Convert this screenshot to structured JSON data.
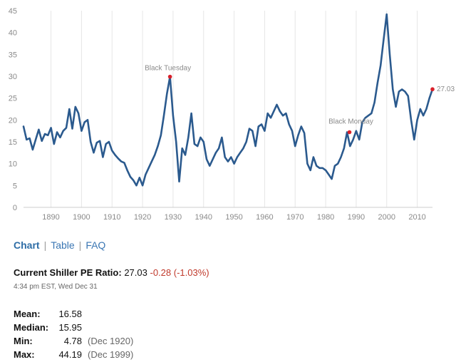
{
  "chart_data": {
    "type": "line",
    "title": "",
    "xlabel": "",
    "ylabel": "",
    "xlim": [
      1881,
      2015
    ],
    "ylim": [
      0,
      45
    ],
    "x_ticks": [
      1890,
      1900,
      1910,
      1920,
      1930,
      1940,
      1950,
      1960,
      1970,
      1980,
      1990,
      2000,
      2010
    ],
    "y_ticks": [
      0,
      5,
      10,
      15,
      20,
      25,
      30,
      35,
      40,
      45
    ],
    "grid": "vertical",
    "line_color": "#2b5a8e",
    "marker_color": "#d9202a",
    "series": [
      {
        "x": [
          1881,
          1882,
          1883,
          1884,
          1885,
          1886,
          1887,
          1888,
          1889,
          1890,
          1891,
          1892,
          1893,
          1894,
          1895,
          1896,
          1897,
          1898,
          1899,
          1900,
          1901,
          1902,
          1903,
          1904,
          1905,
          1906,
          1907,
          1908,
          1909,
          1910,
          1911,
          1912,
          1913,
          1914,
          1915,
          1916,
          1917,
          1918,
          1919,
          1920,
          1921,
          1922,
          1923,
          1924,
          1925,
          1926,
          1927,
          1928,
          1929,
          1930,
          1931,
          1932,
          1933,
          1934,
          1935,
          1936,
          1937,
          1938,
          1939,
          1940,
          1941,
          1942,
          1943,
          1944,
          1945,
          1946,
          1947,
          1948,
          1949,
          1950,
          1951,
          1952,
          1953,
          1954,
          1955,
          1956,
          1957,
          1958,
          1959,
          1960,
          1961,
          1962,
          1963,
          1964,
          1965,
          1966,
          1967,
          1968,
          1969,
          1970,
          1971,
          1972,
          1973,
          1974,
          1975,
          1976,
          1977,
          1978,
          1979,
          1980,
          1981,
          1982,
          1983,
          1984,
          1985,
          1986,
          1987,
          1988,
          1989,
          1990,
          1991,
          1992,
          1993,
          1994,
          1995,
          1996,
          1997,
          1998,
          1999,
          2000,
          2001,
          2002,
          2003,
          2004,
          2005,
          2006,
          2007,
          2008,
          2009,
          2010,
          2011,
          2012,
          2013,
          2014,
          2015
        ],
        "y": [
          18.5,
          15.5,
          15.8,
          13.2,
          15.5,
          17.8,
          15.2,
          16.8,
          16.5,
          18.2,
          14.5,
          17.2,
          16.0,
          17.5,
          18.2,
          22.5,
          18.0,
          23.0,
          21.5,
          17.5,
          19.5,
          20.0,
          15.0,
          12.5,
          14.8,
          15.2,
          11.5,
          14.5,
          15.0,
          13.0,
          12.0,
          11.2,
          10.5,
          10.2,
          8.5,
          7.0,
          6.2,
          5.0,
          6.8,
          5.0,
          7.5,
          9.0,
          10.5,
          12.0,
          14.0,
          16.5,
          21.0,
          26.0,
          29.9,
          21.0,
          15.0,
          5.9,
          13.5,
          12.0,
          16.0,
          21.5,
          14.5,
          14.0,
          16.0,
          15.0,
          11.0,
          9.5,
          11.0,
          12.5,
          13.5,
          16.0,
          11.5,
          10.5,
          11.5,
          10.0,
          11.5,
          12.5,
          13.5,
          15.0,
          18.0,
          17.5,
          14.0,
          18.5,
          19.0,
          17.5,
          21.5,
          20.5,
          22.0,
          23.5,
          22.0,
          21.0,
          21.5,
          19.0,
          17.5,
          14.0,
          16.5,
          18.5,
          17.0,
          10.0,
          8.5,
          11.5,
          9.5,
          9.0,
          9.0,
          8.5,
          7.5,
          6.5,
          9.5,
          10.0,
          11.5,
          13.5,
          17.2,
          14.0,
          15.5,
          17.5,
          15.5,
          19.5,
          20.5,
          21.0,
          21.5,
          24.0,
          28.5,
          32.5,
          38.5,
          44.19,
          35.0,
          27.0,
          23.0,
          26.5,
          27.0,
          26.5,
          25.5,
          20.0,
          15.5,
          20.0,
          22.5,
          21.0,
          22.5,
          25.0,
          27.03
        ]
      }
    ],
    "annotations": [
      {
        "label": "Black Tuesday",
        "x": 1929,
        "y": 29.9
      },
      {
        "label": "Black Monday",
        "x": 1987.8,
        "y": 17.2
      },
      {
        "label": "27.03",
        "x": 2015,
        "y": 27.03
      }
    ]
  },
  "nav": {
    "chart": "Chart",
    "table": "Table",
    "faq": "FAQ",
    "sep": "|"
  },
  "current": {
    "label": "Current Shiller PE Ratio:",
    "value": "27.03",
    "change": "-0.28 (-1.03%)",
    "timestamp": "4:34 pm EST, Wed Dec 31"
  },
  "stats": {
    "mean_label": "Mean:",
    "mean_value": "16.58",
    "median_label": "Median:",
    "median_value": "15.95",
    "min_label": "Min:",
    "min_value": "4.78",
    "min_date": "(Dec 1920)",
    "max_label": "Max:",
    "max_value": "44.19",
    "max_date": "(Dec 1999)"
  }
}
